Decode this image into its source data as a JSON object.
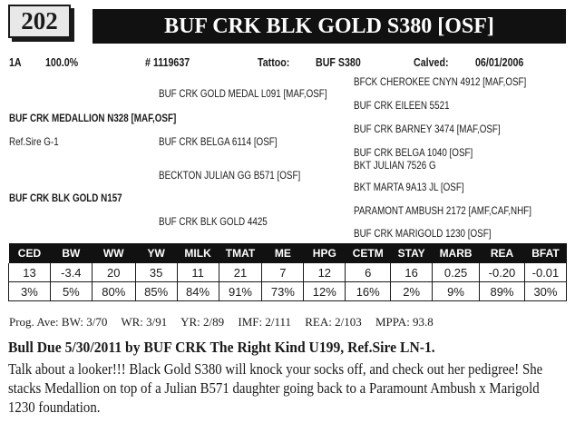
{
  "lot": "202",
  "title": "BUF CRK BLK GOLD S380 [OSF]",
  "info": {
    "reg_class": "1A",
    "percent": "100.0%",
    "reg_no": "# 1119637",
    "tattoo_label": "Tattoo:",
    "tattoo": "BUF S380",
    "calved_label": "Calved:",
    "calved": "06/01/2006"
  },
  "pedigree": {
    "sire": "BUF CRK MEDALLION N328 [MAF,OSF]",
    "ref_sire": "Ref.Sire G-1",
    "dam": "BUF CRK BLK GOLD N157",
    "sire_sire": "BUF CRK GOLD MEDAL L091 [MAF,OSF]",
    "sire_dam": "BUF CRK BELGA 6114 [OSF]",
    "dam_sire": "BECKTON JULIAN GG B571 [OSF]",
    "dam_dam": "BUF CRK BLK GOLD 4425",
    "sss": "BFCK CHEROKEE CNYN 4912 [MAF,OSF]",
    "ssd": "BUF CRK EILEEN 5521",
    "sds": "BUF CRK BARNEY 3474 [MAF,OSF]",
    "sdd": "BUF CRK BELGA 1040 [OSF]",
    "dss": "BKT JULIAN 7526 G",
    "dsd": "BKT MARTA 9A13 JL [OSF]",
    "dds": "PARAMONT AMBUSH 2172 [AMF,CAF,NHF]",
    "ddd": "BUF CRK MARIGOLD 1230 [OSF]"
  },
  "epd": {
    "headers": [
      "CED",
      "BW",
      "WW",
      "YW",
      "MILK",
      "TMAT",
      "ME",
      "HPG",
      "CETM",
      "STAY",
      "MARB",
      "REA",
      "BFAT"
    ],
    "values": [
      "13",
      "-3.4",
      "20",
      "35",
      "11",
      "21",
      "7",
      "12",
      "6",
      "16",
      "0.25",
      "-0.20",
      "-0.01"
    ],
    "percentiles": [
      "3%",
      "5%",
      "80%",
      "85%",
      "84%",
      "91%",
      "73%",
      "12%",
      "16%",
      "2%",
      "9%",
      "89%",
      "30%"
    ]
  },
  "progeny": {
    "bw": "Prog. Ave: BW: 3/70",
    "wr": "WR: 3/91",
    "yr": "YR: 2/89",
    "imf": "IMF: 2/111",
    "rea": "REA: 2/103",
    "mppa": "MPPA: 93.8"
  },
  "headline": "Bull Due 5/30/2011 by BUF CRK The Right Kind U199, Ref.Sire LN-1.",
  "description": "Talk about a looker!!! Black Gold S380 will knock your socks off, and check out her pedigree!  She stacks Medallion on top of a Julian B571 daughter going back to a Paramount Ambush x Marigold 1230 foundation."
}
